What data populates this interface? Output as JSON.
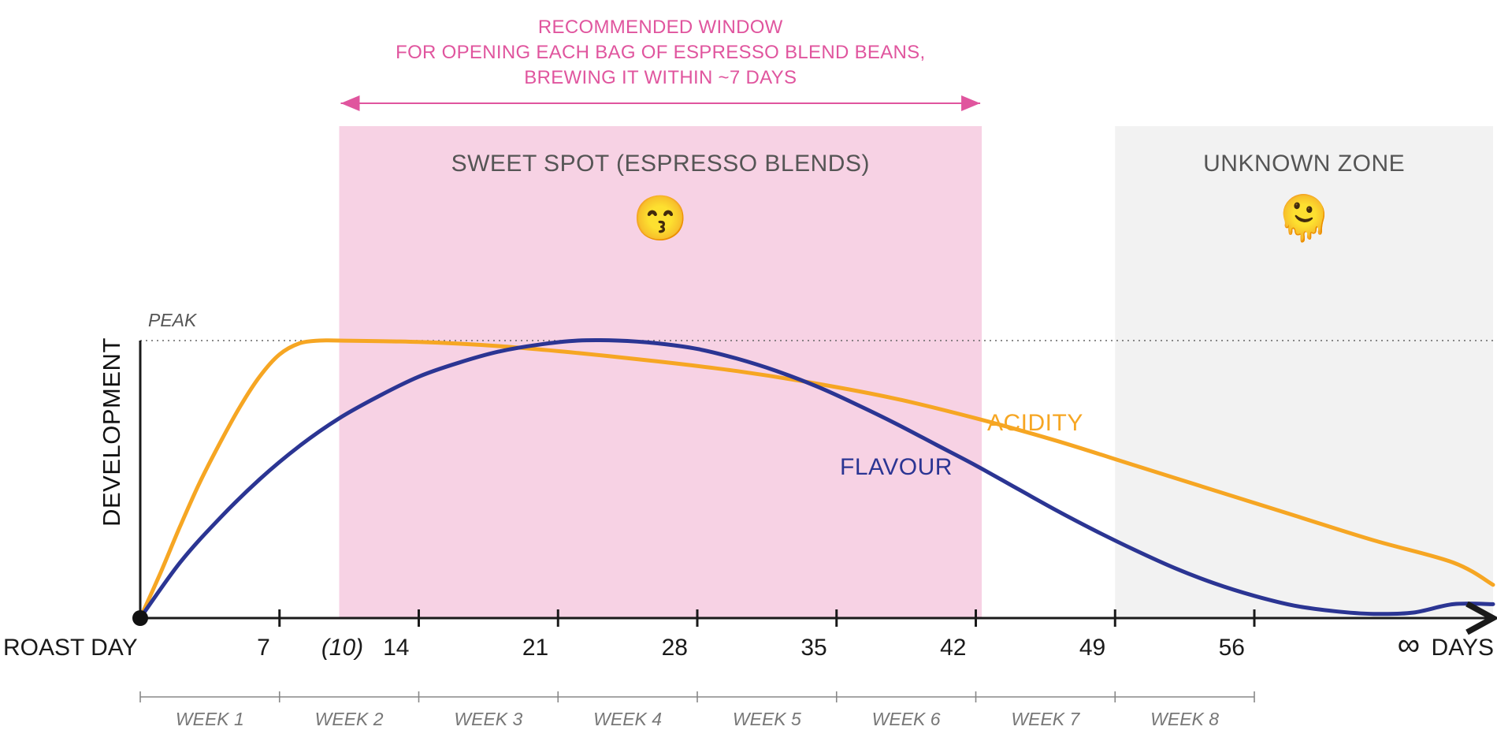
{
  "colors": {
    "acidity": "#F6A623",
    "flavour": "#2B3593",
    "sweet_spot": "#F7D2E4",
    "unknown_zone": "#F2F2F2",
    "window_note": "#E0559E",
    "axis": "#1a1a1a"
  },
  "chart_data": {
    "type": "line",
    "ylabel": "DEVELOPMENT",
    "x_unit_label": "DAYS",
    "x_infinity_symbol": "∞",
    "origin_label": "ROAST DAY",
    "x_ticks": [
      {
        "value": 7,
        "label": "7"
      },
      {
        "value": 10,
        "label": "(10)"
      },
      {
        "value": 14,
        "label": "14"
      },
      {
        "value": 21,
        "label": "21"
      },
      {
        "value": 28,
        "label": "28"
      },
      {
        "value": 35,
        "label": "35"
      },
      {
        "value": 42,
        "label": "42"
      },
      {
        "value": 49,
        "label": "49"
      },
      {
        "value": 56,
        "label": "56"
      }
    ],
    "tick_marks": [
      7,
      14,
      21,
      28,
      35,
      42,
      49,
      56
    ],
    "xlim": [
      0,
      68
    ],
    "ylim": [
      0,
      1
    ],
    "peak": {
      "label": "PEAK",
      "y": 1
    },
    "weeks": [
      {
        "label": "WEEK 1",
        "start": 0,
        "end": 7
      },
      {
        "label": "WEEK 2",
        "start": 7,
        "end": 14
      },
      {
        "label": "WEEK 3",
        "start": 14,
        "end": 21
      },
      {
        "label": "WEEK 4",
        "start": 21,
        "end": 28
      },
      {
        "label": "WEEK 5",
        "start": 28,
        "end": 35
      },
      {
        "label": "WEEK 6",
        "start": 35,
        "end": 42
      },
      {
        "label": "WEEK 7",
        "start": 42,
        "end": 49
      },
      {
        "label": "WEEK 8",
        "start": 49,
        "end": 56
      }
    ],
    "series": [
      {
        "name": "ACIDITY",
        "color": "#F6A623",
        "x": [
          0,
          1,
          2,
          3,
          4,
          5,
          6,
          7,
          8,
          9,
          10,
          14,
          18,
          22,
          26,
          30,
          34,
          38,
          42,
          46,
          50,
          54,
          58,
          62,
          66,
          68
        ],
        "y": [
          0,
          0.16,
          0.33,
          0.49,
          0.63,
          0.76,
          0.87,
          0.95,
          0.99,
          1.0,
          1.0,
          0.995,
          0.98,
          0.955,
          0.925,
          0.89,
          0.845,
          0.79,
          0.72,
          0.64,
          0.55,
          0.46,
          0.37,
          0.28,
          0.2,
          0.12
        ]
      },
      {
        "name": "FLAVOUR",
        "color": "#2B3593",
        "x": [
          0,
          2,
          4,
          6,
          8,
          10,
          12,
          14,
          16,
          18,
          20,
          22,
          24,
          26,
          28,
          30,
          32,
          34,
          36,
          38,
          40,
          42,
          44,
          46,
          48,
          50,
          52,
          54,
          56,
          58,
          60,
          62,
          64,
          66,
          68
        ],
        "y": [
          0,
          0.2,
          0.36,
          0.5,
          0.62,
          0.72,
          0.8,
          0.87,
          0.92,
          0.96,
          0.985,
          1.0,
          1.0,
          0.99,
          0.97,
          0.935,
          0.89,
          0.835,
          0.77,
          0.7,
          0.625,
          0.55,
          0.47,
          0.39,
          0.315,
          0.245,
          0.18,
          0.125,
          0.08,
          0.045,
          0.025,
          0.015,
          0.02,
          0.05,
          0.05
        ]
      }
    ],
    "zones": [
      {
        "key": "sweet_spot",
        "label": "SWEET SPOT (ESPRESSO BLENDS)",
        "start": 10,
        "end": 42.3,
        "emoji": "😙"
      },
      {
        "key": "unknown_zone",
        "label": "UNKNOWN ZONE",
        "start": 49,
        "end": 68,
        "emoji": "🫠"
      }
    ],
    "window_note": {
      "lines": [
        "RECOMMENDED WINDOW",
        "FOR OPENING EACH BAG OF ESPRESSO BLEND BEANS,",
        "BREWING IT WITHIN ~7 DAYS"
      ],
      "start": 10,
      "end": 42.3
    }
  }
}
